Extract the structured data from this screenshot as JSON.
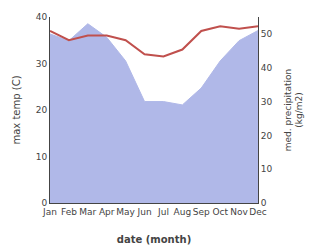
{
  "chart_data": {
    "type": "line",
    "categories": [
      "Jan",
      "Feb",
      "Mar",
      "Apr",
      "May",
      "Jun",
      "Jul",
      "Aug",
      "Sep",
      "Oct",
      "Nov",
      "Dec"
    ],
    "xlabel": "date (month)",
    "ylabel": "max temp (C)",
    "y2label": "med. precipitation\n(kg/m2)",
    "series": [
      {
        "type": "area",
        "axis": "y2",
        "color": "#b0b8e8",
        "values": [
          50,
          48,
          53,
          49,
          42,
          30,
          30,
          29,
          34,
          42,
          48,
          51
        ]
      },
      {
        "type": "line",
        "color": "#c0504d",
        "values": [
          37,
          35,
          36,
          36,
          35,
          32,
          31.5,
          33,
          37,
          38,
          37.5,
          38
        ]
      }
    ],
    "ylim": [
      0,
      40
    ],
    "yticks": [
      0,
      10,
      20,
      30,
      40
    ],
    "y2lim": [
      0,
      55
    ],
    "y2ticks": [
      0,
      10,
      20,
      30,
      40,
      50
    ],
    "grid": false
  }
}
